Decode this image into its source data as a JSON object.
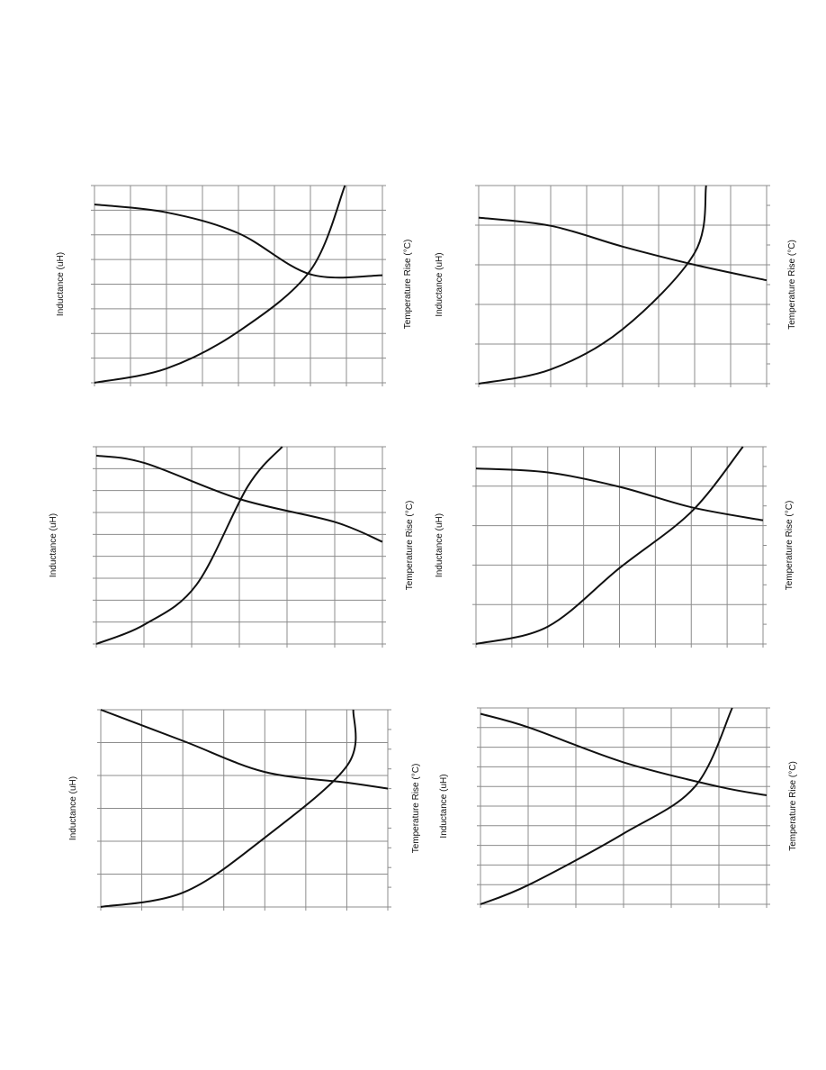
{
  "chart_data": [
    {
      "type": "line",
      "ylabel": "Inductance  (uH)",
      "y2label": "Temperature Rise (°C)",
      "grid": true,
      "xdivs": 8,
      "ydivs": 8,
      "rticks": 8,
      "series": [
        {
          "values": [
            [
              0,
              0.904
            ],
            [
              0.25,
              0.864
            ],
            [
              0.5,
              0.758
            ],
            [
              0.75,
              0.55
            ],
            [
              1.0,
              0.545
            ]
          ]
        },
        {
          "values": [
            [
              0,
              0.0
            ],
            [
              0.25,
              0.072
            ],
            [
              0.5,
              0.26
            ],
            [
              0.75,
              0.57
            ],
            [
              0.87,
              1.0
            ]
          ]
        }
      ]
    },
    {
      "type": "line",
      "ylabel": "Inductance (uH)",
      "y2label": "Temperature Rise (°C)",
      "grid": true,
      "xdivs": 8,
      "ydivs": 5,
      "rticks": 10,
      "series": [
        {
          "values": [
            [
              0,
              0.838
            ],
            [
              0.25,
              0.797
            ],
            [
              0.5,
              0.692
            ],
            [
              0.75,
              0.6
            ],
            [
              1.0,
              0.522
            ]
          ]
        },
        {
          "values": [
            [
              0,
              0.0
            ],
            [
              0.25,
              0.072
            ],
            [
              0.5,
              0.275
            ],
            [
              0.75,
              0.66
            ],
            [
              0.79,
              1.0
            ]
          ]
        }
      ]
    },
    {
      "type": "line",
      "ylabel": "Inductance (uH)",
      "y2label": "Temperature  Rise (°C)",
      "grid": true,
      "xdivs": 6,
      "ydivs": 9,
      "rticks": 9,
      "series": [
        {
          "values": [
            [
              0,
              0.955
            ],
            [
              0.17,
              0.917
            ],
            [
              0.5,
              0.735
            ],
            [
              0.83,
              0.62
            ],
            [
              1.0,
              0.518
            ]
          ]
        },
        {
          "values": [
            [
              0,
              0.0
            ],
            [
              0.17,
              0.1
            ],
            [
              0.35,
              0.3
            ],
            [
              0.53,
              0.8
            ],
            [
              0.65,
              1.0
            ]
          ]
        }
      ]
    },
    {
      "type": "line",
      "ylabel": "Inductance (uH)",
      "y2label": "Temperature Rise (°C)",
      "grid": true,
      "xdivs": 8,
      "ydivs": 5,
      "rticks": 10,
      "series": [
        {
          "values": [
            [
              0,
              0.89
            ],
            [
              0.25,
              0.87
            ],
            [
              0.5,
              0.797
            ],
            [
              0.75,
              0.693
            ],
            [
              1.0,
              0.627
            ]
          ]
        },
        {
          "values": [
            [
              0,
              0.0
            ],
            [
              0.25,
              0.088
            ],
            [
              0.5,
              0.385
            ],
            [
              0.75,
              0.67
            ],
            [
              0.93,
              1.0
            ]
          ]
        }
      ]
    },
    {
      "type": "line",
      "ylabel": "Inductance (uH)",
      "y2label": "Temperature Rise (°C)",
      "grid": true,
      "xdivs": 7,
      "ydivs": 6,
      "rticks": 10,
      "series": [
        {
          "values": [
            [
              0,
              1.0
            ],
            [
              0.29,
              0.84
            ],
            [
              0.57,
              0.685
            ],
            [
              0.86,
              0.63
            ],
            [
              1.0,
              0.6
            ]
          ]
        },
        {
          "values": [
            [
              0,
              0.0
            ],
            [
              0.29,
              0.075
            ],
            [
              0.57,
              0.35
            ],
            [
              0.86,
              0.72
            ],
            [
              0.88,
              1.0
            ]
          ]
        }
      ]
    },
    {
      "type": "line",
      "ylabel": "Inductance (uH)",
      "y2label": "Temperature Rise (°C)",
      "grid": true,
      "xdivs": 6,
      "ydivs": 10,
      "rticks": 10,
      "series": [
        {
          "values": [
            [
              0,
              0.97
            ],
            [
              0.17,
              0.9
            ],
            [
              0.5,
              0.723
            ],
            [
              0.83,
              0.6
            ],
            [
              1.0,
              0.555
            ]
          ]
        },
        {
          "values": [
            [
              0,
              0.0
            ],
            [
              0.17,
              0.1
            ],
            [
              0.5,
              0.36
            ],
            [
              0.75,
              0.6
            ],
            [
              0.88,
              1.0
            ]
          ]
        }
      ]
    }
  ]
}
